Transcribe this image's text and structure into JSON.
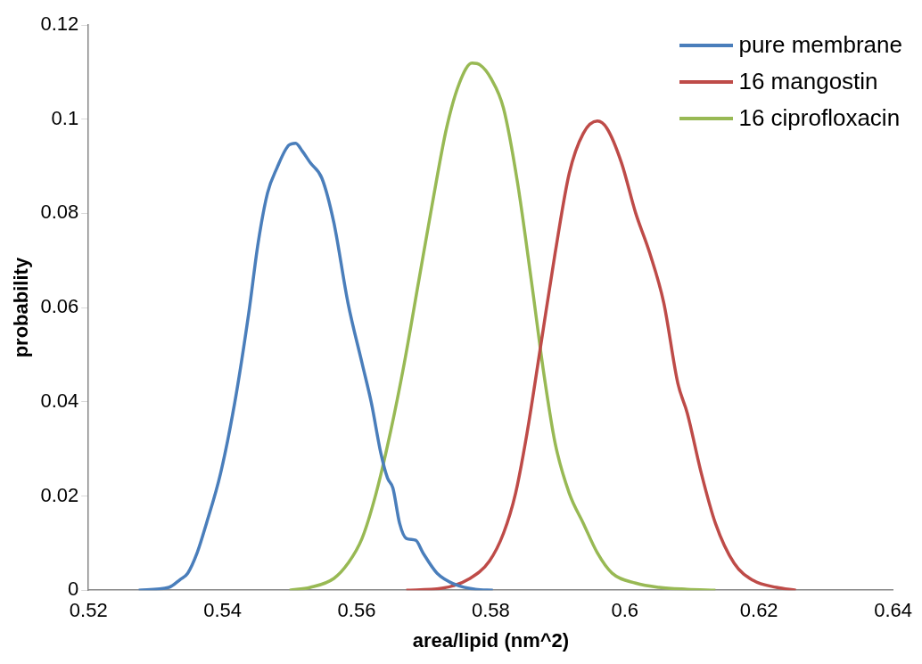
{
  "chart_data": {
    "type": "line",
    "xlabel": "area/lipid (nm^2)",
    "ylabel": "probability",
    "xlim": [
      0.52,
      0.64
    ],
    "xticks": [
      0.52,
      0.54,
      0.56,
      0.58,
      0.6,
      0.62,
      0.64
    ],
    "ylim": [
      0,
      0.12
    ],
    "yticks": [
      0,
      0.02,
      0.04,
      0.06,
      0.08,
      0.1,
      0.12
    ],
    "grid": false,
    "legend": "top right",
    "marker": "none",
    "line_style": "solid",
    "series": [
      {
        "name": "pure membrane",
        "color": "#4a7ebb",
        "x": [
          0.5275,
          0.532,
          0.5337,
          0.5348,
          0.5362,
          0.5376,
          0.5397,
          0.5418,
          0.5439,
          0.5453,
          0.5467,
          0.5481,
          0.5499,
          0.5509,
          0.5519,
          0.5531,
          0.5548,
          0.5566,
          0.5587,
          0.5608,
          0.5622,
          0.5636,
          0.5646,
          0.5654,
          0.5664,
          0.5674,
          0.5688,
          0.5699,
          0.572,
          0.5749,
          0.5777,
          0.5803
        ],
        "values": [
          0,
          0.0006,
          0.0023,
          0.0036,
          0.0079,
          0.0142,
          0.0248,
          0.0397,
          0.0588,
          0.0737,
          0.0843,
          0.0896,
          0.0945,
          0.0949,
          0.0932,
          0.0907,
          0.0875,
          0.078,
          0.061,
          0.0482,
          0.0397,
          0.0291,
          0.0238,
          0.0217,
          0.0142,
          0.011,
          0.0106,
          0.0079,
          0.0036,
          0.0011,
          0.0002,
          0
        ]
      },
      {
        "name": "16 mangostin",
        "color": "#be4b48",
        "x": [
          0.5674,
          0.5727,
          0.5769,
          0.5798,
          0.5819,
          0.5837,
          0.5854,
          0.5875,
          0.5896,
          0.5917,
          0.5938,
          0.5959,
          0.5973,
          0.5995,
          0.6016,
          0.6037,
          0.6058,
          0.6079,
          0.6093,
          0.6114,
          0.6135,
          0.6163,
          0.6191,
          0.6226,
          0.6255
        ],
        "values": [
          0,
          0.0004,
          0.0025,
          0.0062,
          0.0121,
          0.0206,
          0.0333,
          0.0524,
          0.0716,
          0.0885,
          0.097,
          0.0996,
          0.0981,
          0.0907,
          0.0801,
          0.0716,
          0.061,
          0.0439,
          0.0376,
          0.0248,
          0.0142,
          0.0057,
          0.0021,
          0.0006,
          0
        ]
      },
      {
        "name": "16 ciprofloxacin",
        "color": "#98b954",
        "x": [
          0.55,
          0.5531,
          0.5566,
          0.5587,
          0.5608,
          0.5629,
          0.565,
          0.5671,
          0.5692,
          0.5713,
          0.5734,
          0.5753,
          0.5772,
          0.5784,
          0.58,
          0.5819,
          0.584,
          0.5861,
          0.5879,
          0.5896,
          0.5917,
          0.5938,
          0.5959,
          0.5981,
          0.6016,
          0.6051,
          0.6093,
          0.6135
        ],
        "values": [
          0,
          0.0006,
          0.0025,
          0.0057,
          0.011,
          0.0206,
          0.0333,
          0.0482,
          0.0652,
          0.0822,
          0.0981,
          0.1076,
          0.1119,
          0.1115,
          0.1087,
          0.1023,
          0.0864,
          0.0652,
          0.0461,
          0.0312,
          0.0206,
          0.0142,
          0.0079,
          0.0036,
          0.0015,
          0.0006,
          0.0002,
          0
        ]
      }
    ]
  }
}
